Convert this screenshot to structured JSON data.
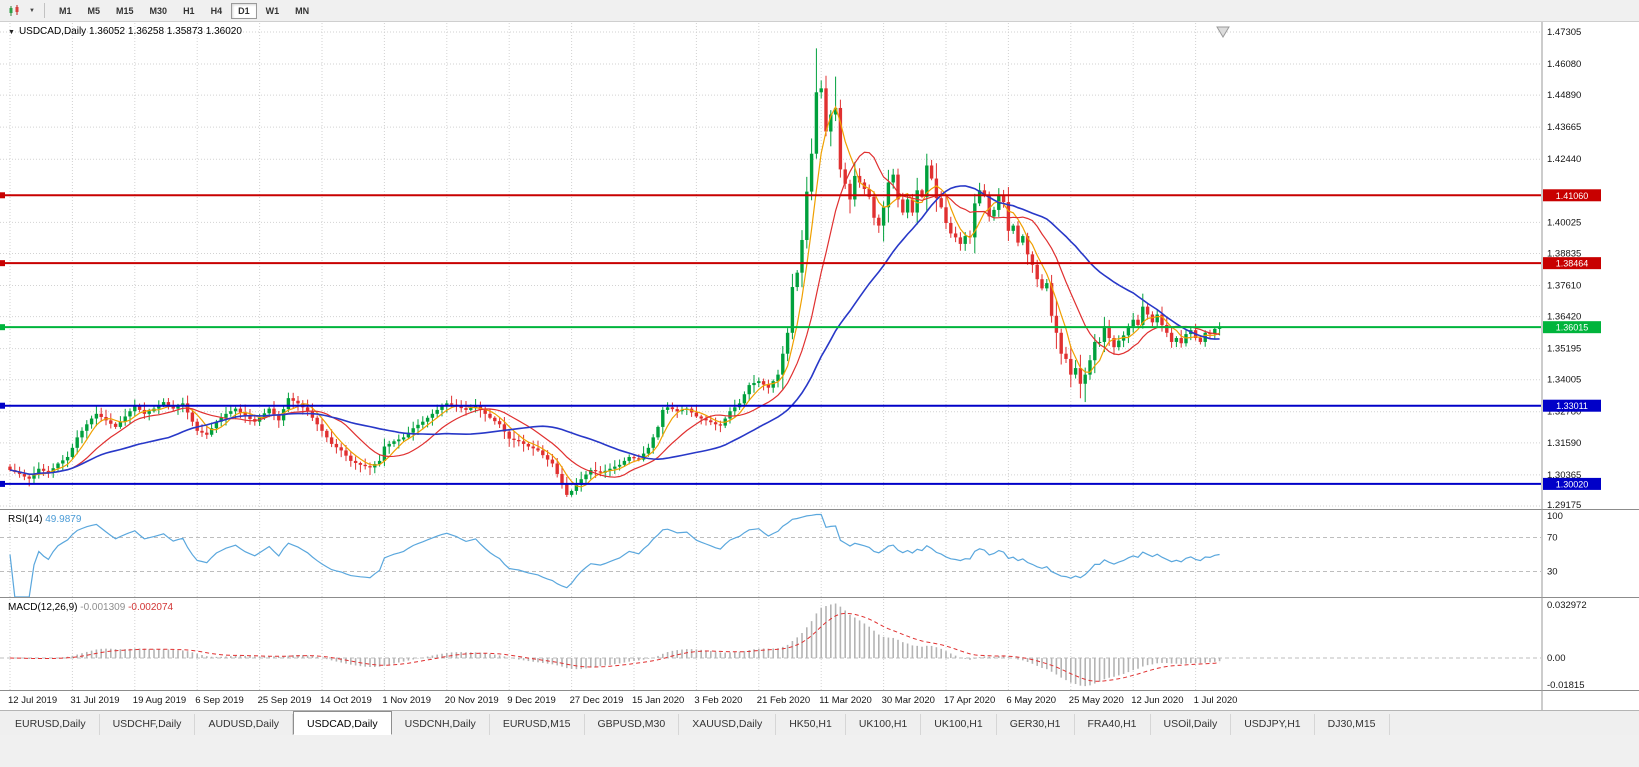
{
  "toolbar": {
    "timeframes": [
      "M1",
      "M5",
      "M15",
      "M30",
      "H1",
      "H4",
      "D1",
      "W1",
      "MN"
    ],
    "active_timeframe": "D1"
  },
  "chart": {
    "symbol_period": "USDCAD,Daily",
    "ohlc": "1.36052 1.36258 1.35873 1.36020",
    "price_axis_labels": [
      "1.47305",
      "1.46080",
      "1.44890",
      "1.43665",
      "1.42440",
      "1.40025",
      "1.38835",
      "1.37610",
      "1.36420",
      "1.35195",
      "1.34005",
      "1.32780",
      "1.31590",
      "1.30365",
      "1.29175"
    ],
    "hlines": [
      {
        "price": 1.4106,
        "label": "1.41060",
        "color": "#c80000",
        "kind": "resistance"
      },
      {
        "price": 1.38464,
        "label": "1.38464",
        "color": "#c80000",
        "kind": "resistance"
      },
      {
        "price": 1.36015,
        "label": "1.36015",
        "color": "#00b43c",
        "kind": "current-price"
      },
      {
        "price": 1.33011,
        "label": "1.33011",
        "color": "#0000c8",
        "kind": "support"
      },
      {
        "price": 1.3002,
        "label": "1.30020",
        "color": "#0000c8",
        "kind": "support"
      }
    ]
  },
  "rsi": {
    "title": "RSI(14)",
    "value": "49.9879",
    "axis_labels": [
      "100",
      "70",
      "30"
    ],
    "levels": [
      70,
      30
    ]
  },
  "macd": {
    "title": "MACD(12,26,9)",
    "value_main": "-0.001309",
    "value_signal": "-0.002074",
    "axis_labels": [
      "0.032972",
      "0.00",
      "-0.01815"
    ],
    "range": [
      -0.01815,
      0.032972
    ]
  },
  "tabs": {
    "items": [
      "EURUSD,Daily",
      "USDCHF,Daily",
      "AUDUSD,Daily",
      "USDCAD,Daily",
      "USDCNH,Daily",
      "EURUSD,M15",
      "GBPUSD,M30",
      "XAUUSD,Daily",
      "HK50,H1",
      "UK100,H1",
      "UK100,H1",
      "GER30,H1",
      "FRA40,H1",
      "USOil,Daily",
      "USDJPY,H1",
      "DJ30,M15"
    ],
    "active": "USDCAD,Daily"
  },
  "chart_data": {
    "type": "candlestick",
    "symbol": "USDCAD",
    "timeframe": "Daily",
    "x_labels": [
      "12 Jul 2019",
      "31 Jul 2019",
      "19 Aug 2019",
      "6 Sep 2019",
      "25 Sep 2019",
      "14 Oct 2019",
      "1 Nov 2019",
      "20 Nov 2019",
      "9 Dec 2019",
      "27 Dec 2019",
      "15 Jan 2020",
      "3 Feb 2020",
      "21 Feb 2020",
      "11 Mar 2020",
      "30 Mar 2020",
      "17 Apr 2020",
      "6 May 2020",
      "25 May 2020",
      "12 Jun 2020",
      "1 Jul 2020"
    ],
    "bars_per_label": 13,
    "price_range": [
      1.2906,
      1.4765
    ],
    "closes": [
      1.3055,
      1.3048,
      1.304,
      1.303,
      1.3022,
      1.3042,
      1.306,
      1.3052,
      1.3045,
      1.3062,
      1.308,
      1.3092,
      1.3105,
      1.314,
      1.318,
      1.3205,
      1.323,
      1.3252,
      1.327,
      1.3258,
      1.3245,
      1.3232,
      1.322,
      1.324,
      1.326,
      1.328,
      1.33,
      1.3285,
      1.327,
      1.328,
      1.329,
      1.3302,
      1.3315,
      1.3302,
      1.329,
      1.33,
      1.331,
      1.3275,
      1.324,
      1.3205,
      1.3198,
      1.319,
      1.3215,
      1.324,
      1.3255,
      1.327,
      1.328,
      1.329,
      1.3275,
      1.326,
      1.325,
      1.324,
      1.3255,
      1.3272,
      1.329,
      1.3268,
      1.3245,
      1.3288,
      1.333,
      1.332,
      1.331,
      1.3295,
      1.328,
      1.3255,
      1.323,
      1.3205,
      1.318,
      1.3155,
      1.3142,
      1.313,
      1.311,
      1.309,
      1.3082,
      1.3075,
      1.307,
      1.3065,
      1.3078,
      1.309,
      1.3145,
      1.3155,
      1.3165,
      1.3172,
      1.318,
      1.3198,
      1.3215,
      1.3228,
      1.324,
      1.3255,
      1.327,
      1.3285,
      1.33,
      1.331,
      1.3305,
      1.33,
      1.3292,
      1.3285,
      1.3292,
      1.33,
      1.3285,
      1.327,
      1.3255,
      1.3242,
      1.323,
      1.3202,
      1.3175,
      1.317,
      1.3165,
      1.3155,
      1.3145,
      1.3138,
      1.313,
      1.3112,
      1.3095,
      1.308,
      1.304,
      1.3,
      1.296,
      1.2975,
      1.2998,
      1.302,
      1.3038,
      1.3055,
      1.305,
      1.3045,
      1.3052,
      1.306,
      1.3068,
      1.3075,
      1.309,
      1.3105,
      1.31,
      1.3095,
      1.3118,
      1.314,
      1.318,
      1.322,
      1.3285,
      1.3295,
      1.3288,
      1.328,
      1.3285,
      1.329,
      1.3275,
      1.326,
      1.3252,
      1.3245,
      1.3238,
      1.323,
      1.3225,
      1.3252,
      1.328,
      1.3295,
      1.331,
      1.3345,
      1.338,
      1.3388,
      1.3395,
      1.3382,
      1.337,
      1.3395,
      1.342,
      1.35,
      1.358,
      1.3755,
      1.381,
      1.3935,
      1.412,
      1.4265,
      1.45,
      1.4515,
      1.435,
      1.4415,
      1.444,
      1.4205,
      1.415,
      1.409,
      1.418,
      1.4155,
      1.413,
      1.41,
      1.402,
      1.399,
      1.406,
      1.4155,
      1.4185,
      1.409,
      1.404,
      1.409,
      1.404,
      1.4125,
      1.41,
      1.422,
      1.417,
      1.4095,
      1.406,
      1.4,
      1.396,
      1.3945,
      1.392,
      1.395,
      1.3945,
      1.4075,
      1.4125,
      1.4105,
      1.4025,
      1.405,
      1.4105,
      1.408,
      1.397,
      1.399,
      1.3925,
      1.395,
      1.388,
      1.384,
      1.3785,
      1.375,
      1.377,
      1.3645,
      1.358,
      1.35,
      1.348,
      1.342,
      1.3445,
      1.3385,
      1.342,
      1.3475,
      1.3545,
      1.3545,
      1.3605,
      1.356,
      1.3525,
      1.355,
      1.357,
      1.3605,
      1.363,
      1.361,
      1.368,
      1.365,
      1.362,
      1.365,
      1.361,
      1.358,
      1.3545,
      1.356,
      1.354,
      1.3575,
      1.359,
      1.356,
      1.3545,
      1.358,
      1.3575,
      1.3595,
      1.3602
    ],
    "key_extremes": {
      "116": {
        "low": 1.2952
      },
      "168": {
        "high": 1.4668
      },
      "172": {
        "high": 1.456
      },
      "191": {
        "high": 1.4265
      },
      "224": {
        "low": 1.3315
      }
    },
    "last_close": 1.3602,
    "overlays": [
      {
        "name": "SMA(5)",
        "period": 5,
        "color": "#f0a000"
      },
      {
        "name": "SMA(13)",
        "period": 13,
        "color": "#e03030"
      },
      {
        "name": "SMA(34)",
        "period": 34,
        "color": "#2838c8"
      }
    ],
    "indicators": [
      {
        "name": "RSI",
        "params": "14",
        "current": "49.9879"
      },
      {
        "name": "MACD",
        "params": "12,26,9",
        "current": "-0.001309 -0.002074"
      }
    ],
    "colors": {
      "bull": "#00a03c",
      "bear": "#e03030",
      "grid": "#d2d2d2",
      "rsi_line": "#5aa7dd",
      "macd_hist": "#b4b4b4",
      "macd_signal": "#e03030"
    }
  }
}
